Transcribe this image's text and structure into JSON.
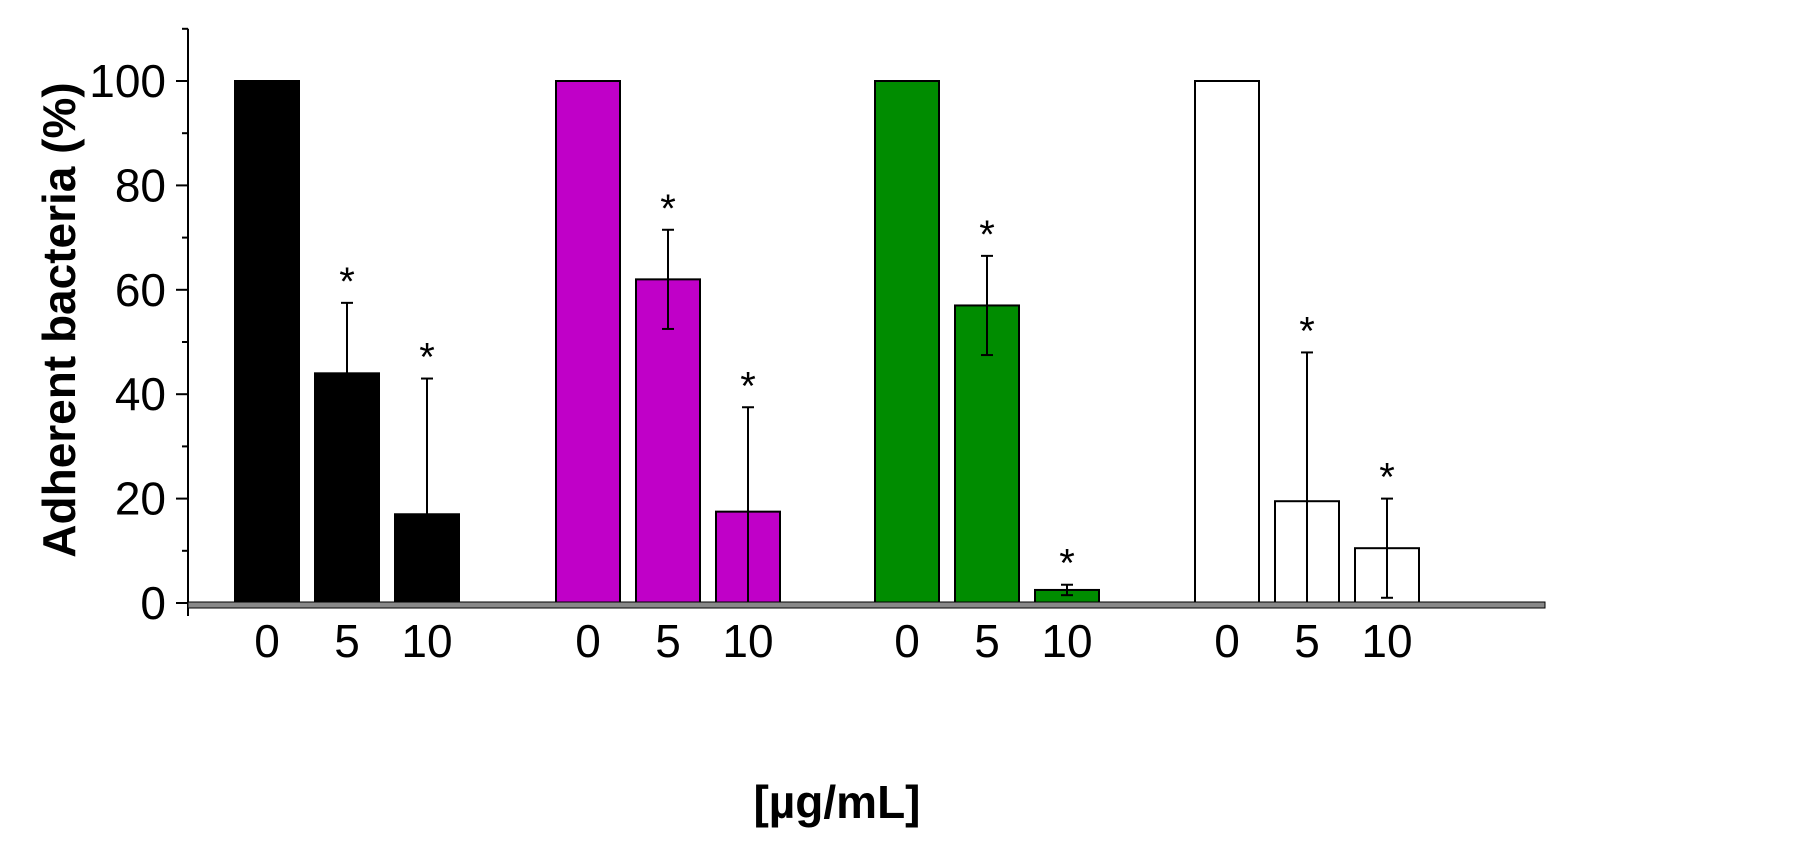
{
  "chart_data": {
    "type": "bar",
    "xlabel": "[µg/mL]",
    "ylabel": "Adherent bacteria (%)",
    "ylim": [
      0,
      110
    ],
    "yticks": [
      0,
      20,
      40,
      60,
      80,
      100
    ],
    "grid": false,
    "legend": "none",
    "groups": [
      {
        "color": "#000000",
        "bars": [
          {
            "category": "0",
            "value": 100,
            "error": 0,
            "marker": ""
          },
          {
            "category": "5",
            "value": 44,
            "error": 13.5,
            "marker": "*"
          },
          {
            "category": "10",
            "value": 17,
            "error": 26,
            "marker": "*"
          }
        ]
      },
      {
        "color": "#c000c8",
        "bars": [
          {
            "category": "0",
            "value": 100,
            "error": 0,
            "marker": ""
          },
          {
            "category": "5",
            "value": 62,
            "error": 9.5,
            "marker": "*"
          },
          {
            "category": "10",
            "value": 17.5,
            "error": 20,
            "marker": "*"
          }
        ]
      },
      {
        "color": "#008c00",
        "bars": [
          {
            "category": "0",
            "value": 100,
            "error": 0,
            "marker": ""
          },
          {
            "category": "5",
            "value": 57,
            "error": 9.5,
            "marker": "*"
          },
          {
            "category": "10",
            "value": 2.5,
            "error": 1,
            "marker": "*"
          }
        ]
      },
      {
        "color": "#ffffff",
        "bars": [
          {
            "category": "0",
            "value": 100,
            "error": 0,
            "marker": ""
          },
          {
            "category": "5",
            "value": 19.5,
            "error": 28.5,
            "marker": "*"
          },
          {
            "category": "10",
            "value": 10.5,
            "error": 9.5,
            "marker": "*"
          }
        ]
      }
    ]
  }
}
